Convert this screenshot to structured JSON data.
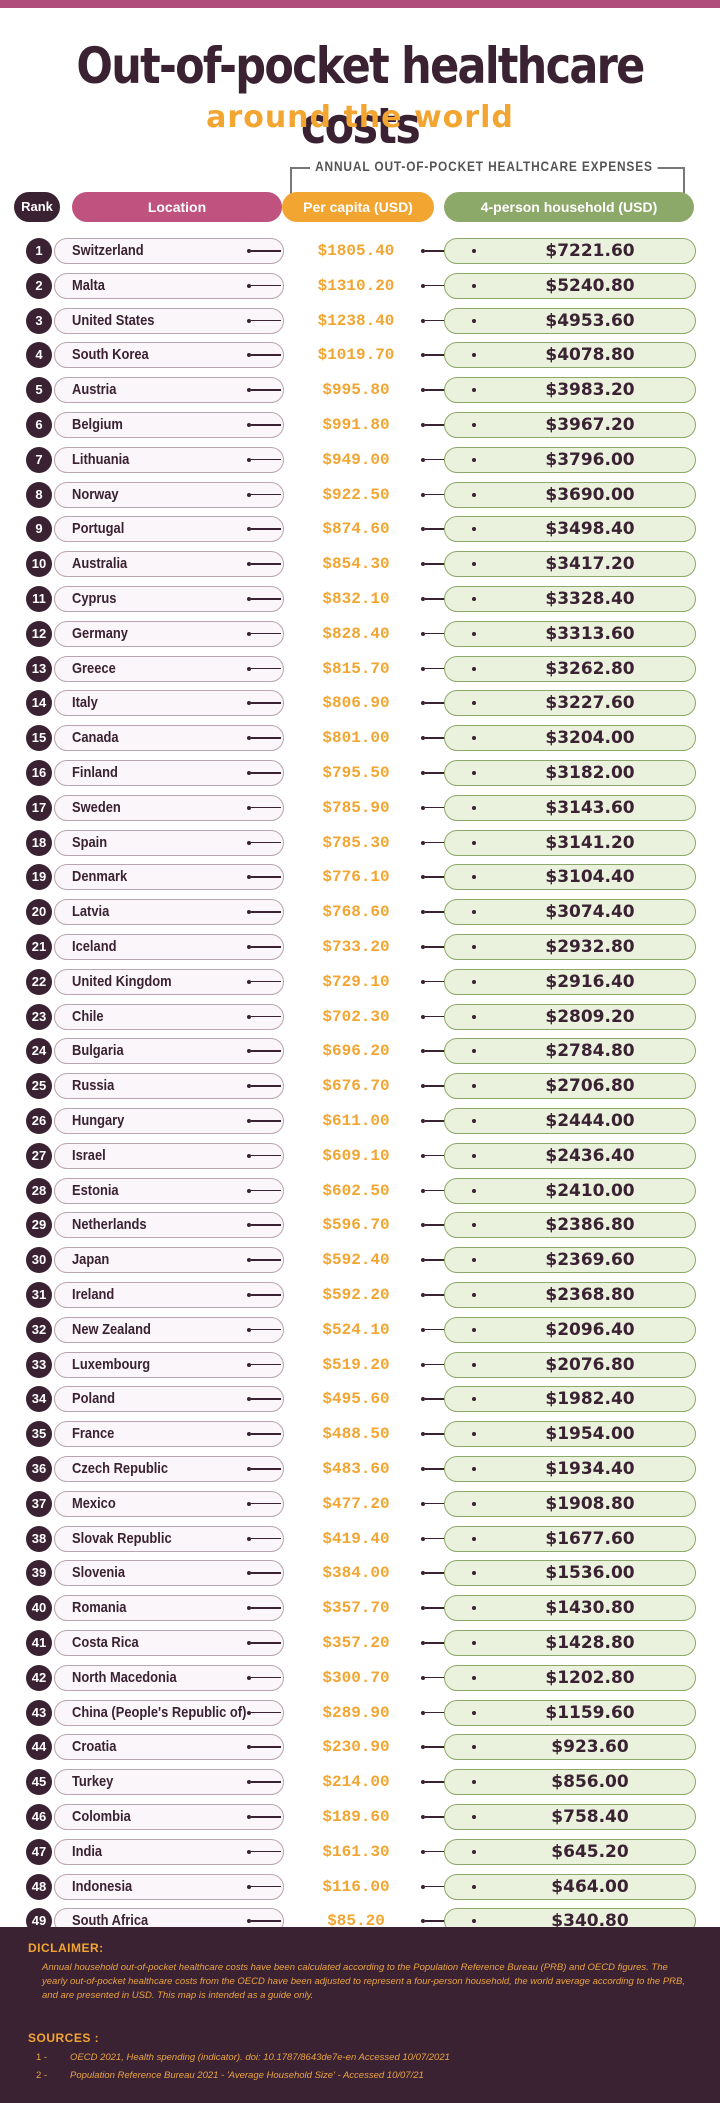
{
  "header": {
    "title": "Out-of-pocket healthcare costs",
    "subtitle": "around the world",
    "expenses_label": "ANNUAL OUT-OF-POCKET HEALTHCARE EXPENSES"
  },
  "chart_data": {
    "type": "table",
    "title": "Out-of-pocket healthcare costs around the world",
    "columns": [
      "Rank",
      "Location",
      "Per capita (USD)",
      "4-person household (USD)"
    ],
    "rows": [
      {
        "rank": "1",
        "location": "Switzerland",
        "per_capita": "$1805.40",
        "household": "$7221.60"
      },
      {
        "rank": "2",
        "location": "Malta",
        "per_capita": "$1310.20",
        "household": "$5240.80"
      },
      {
        "rank": "3",
        "location": "United States",
        "per_capita": "$1238.40",
        "household": "$4953.60"
      },
      {
        "rank": "4",
        "location": "South Korea",
        "per_capita": "$1019.70",
        "household": "$4078.80"
      },
      {
        "rank": "5",
        "location": "Austria",
        "per_capita": "$995.80",
        "household": "$3983.20"
      },
      {
        "rank": "6",
        "location": "Belgium",
        "per_capita": "$991.80",
        "household": "$3967.20"
      },
      {
        "rank": "7",
        "location": "Lithuania",
        "per_capita": "$949.00",
        "household": "$3796.00"
      },
      {
        "rank": "8",
        "location": "Norway",
        "per_capita": "$922.50",
        "household": "$3690.00"
      },
      {
        "rank": "9",
        "location": "Portugal",
        "per_capita": "$874.60",
        "household": "$3498.40"
      },
      {
        "rank": "10",
        "location": "Australia",
        "per_capita": "$854.30",
        "household": "$3417.20"
      },
      {
        "rank": "11",
        "location": "Cyprus",
        "per_capita": "$832.10",
        "household": "$3328.40"
      },
      {
        "rank": "12",
        "location": "Germany",
        "per_capita": "$828.40",
        "household": "$3313.60"
      },
      {
        "rank": "13",
        "location": "Greece",
        "per_capita": "$815.70",
        "household": "$3262.80"
      },
      {
        "rank": "14",
        "location": "Italy",
        "per_capita": "$806.90",
        "household": "$3227.60"
      },
      {
        "rank": "15",
        "location": "Canada",
        "per_capita": "$801.00",
        "household": "$3204.00"
      },
      {
        "rank": "16",
        "location": "Finland",
        "per_capita": "$795.50",
        "household": "$3182.00"
      },
      {
        "rank": "17",
        "location": "Sweden",
        "per_capita": "$785.90",
        "household": "$3143.60"
      },
      {
        "rank": "18",
        "location": "Spain",
        "per_capita": "$785.30",
        "household": "$3141.20"
      },
      {
        "rank": "19",
        "location": "Denmark",
        "per_capita": "$776.10",
        "household": "$3104.40"
      },
      {
        "rank": "20",
        "location": "Latvia",
        "per_capita": "$768.60",
        "household": "$3074.40"
      },
      {
        "rank": "21",
        "location": "Iceland",
        "per_capita": "$733.20",
        "household": "$2932.80"
      },
      {
        "rank": "22",
        "location": "United Kingdom",
        "per_capita": "$729.10",
        "household": "$2916.40"
      },
      {
        "rank": "23",
        "location": "Chile",
        "per_capita": "$702.30",
        "household": "$2809.20"
      },
      {
        "rank": "24",
        "location": "Bulgaria",
        "per_capita": "$696.20",
        "household": "$2784.80"
      },
      {
        "rank": "25",
        "location": "Russia",
        "per_capita": "$676.70",
        "household": "$2706.80"
      },
      {
        "rank": "26",
        "location": "Hungary",
        "per_capita": "$611.00",
        "household": "$2444.00"
      },
      {
        "rank": "27",
        "location": "Israel",
        "per_capita": "$609.10",
        "household": "$2436.40"
      },
      {
        "rank": "28",
        "location": "Estonia",
        "per_capita": "$602.50",
        "household": "$2410.00"
      },
      {
        "rank": "29",
        "location": "Netherlands",
        "per_capita": "$596.70",
        "household": "$2386.80"
      },
      {
        "rank": "30",
        "location": "Japan",
        "per_capita": "$592.40",
        "household": "$2369.60"
      },
      {
        "rank": "31",
        "location": "Ireland",
        "per_capita": "$592.20",
        "household": "$2368.80"
      },
      {
        "rank": "32",
        "location": "New Zealand",
        "per_capita": "$524.10",
        "household": "$2096.40"
      },
      {
        "rank": "33",
        "location": "Luxembourg",
        "per_capita": "$519.20",
        "household": "$2076.80"
      },
      {
        "rank": "34",
        "location": "Poland",
        "per_capita": "$495.60",
        "household": "$1982.40"
      },
      {
        "rank": "35",
        "location": "France",
        "per_capita": "$488.50",
        "household": "$1954.00"
      },
      {
        "rank": "36",
        "location": "Czech Republic",
        "per_capita": "$483.60",
        "household": "$1934.40"
      },
      {
        "rank": "37",
        "location": "Mexico",
        "per_capita": "$477.20",
        "household": "$1908.80"
      },
      {
        "rank": "38",
        "location": "Slovak Republic",
        "per_capita": "$419.40",
        "household": "$1677.60"
      },
      {
        "rank": "39",
        "location": "Slovenia",
        "per_capita": "$384.00",
        "household": "$1536.00"
      },
      {
        "rank": "40",
        "location": "Romania",
        "per_capita": "$357.70",
        "household": "$1430.80"
      },
      {
        "rank": "41",
        "location": "Costa Rica",
        "per_capita": "$357.20",
        "household": "$1428.80"
      },
      {
        "rank": "42",
        "location": "North Macedonia",
        "per_capita": "$300.70",
        "household": "$1202.80"
      },
      {
        "rank": "43",
        "location": "China (People's Republic of)",
        "per_capita": "$289.90",
        "household": "$1159.60"
      },
      {
        "rank": "44",
        "location": "Croatia",
        "per_capita": "$230.90",
        "household": "$923.60"
      },
      {
        "rank": "45",
        "location": "Turkey",
        "per_capita": "$214.00",
        "household": "$856.00"
      },
      {
        "rank": "46",
        "location": "Colombia",
        "per_capita": "$189.60",
        "household": "$758.40"
      },
      {
        "rank": "47",
        "location": "India",
        "per_capita": "$161.30",
        "household": "$645.20"
      },
      {
        "rank": "48",
        "location": "Indonesia",
        "per_capita": "$116.00",
        "household": "$464.00"
      },
      {
        "rank": "49",
        "location": "South Africa",
        "per_capita": "$85.20",
        "household": "$340.80"
      }
    ]
  },
  "footer": {
    "disclaimer_title": "DICLAIMER:",
    "disclaimer_text": "Annual household out-of-pocket healthcare costs have been calculated according to the Population Reference Bureau (PRB) and OECD figures. The yearly out-of-pocket healthcare costs from the OECD have been adjusted to represent a four-person household, the world average according to the PRB, and are presented in USD. This map is intended as a guide only.",
    "sources_title": "SOURCES :",
    "sources": [
      {
        "num": "1 -",
        "text": "OECD 2021, Health spending (indicator). doi: 10.1787/8643de7e-en Accessed 10/07/2021"
      },
      {
        "num": "2 -",
        "text": "Population Reference Bureau 2021 - 'Average Household Size' - Accessed 10/07/21"
      }
    ]
  }
}
